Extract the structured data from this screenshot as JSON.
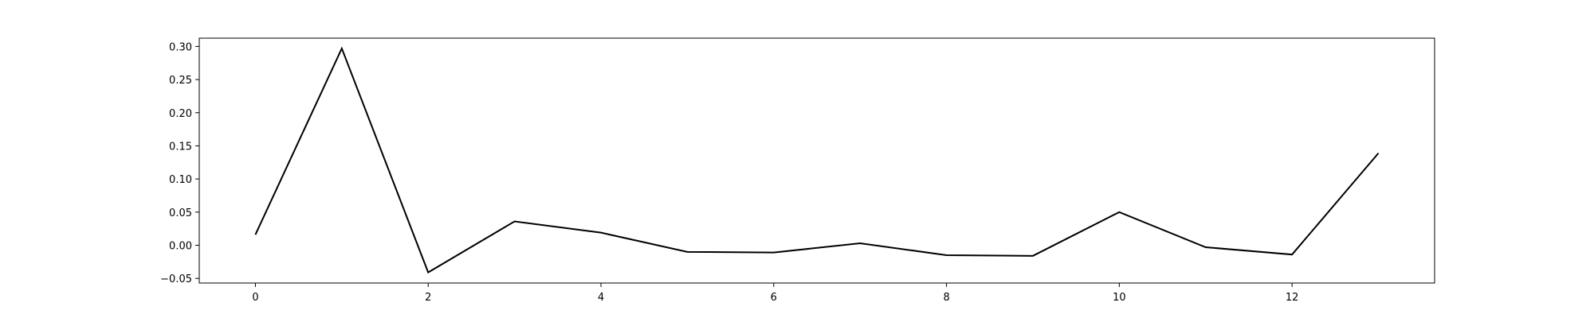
{
  "chart_data": {
    "type": "line",
    "title": "",
    "xlabel": "",
    "ylabel": "",
    "x": [
      0,
      1,
      2,
      3,
      4,
      5,
      6,
      7,
      8,
      9,
      10,
      11,
      12,
      13
    ],
    "series": [
      {
        "values": [
          0.016,
          0.297,
          -0.041,
          0.036,
          0.019,
          -0.01,
          -0.011,
          0.003,
          -0.015,
          -0.016,
          0.05,
          -0.003,
          -0.014,
          0.139
        ],
        "color": "#000000"
      }
    ],
    "xlim": [
      -0.65,
      13.65
    ],
    "ylim": [
      -0.057,
      0.3125
    ],
    "xticks": [
      0,
      2,
      4,
      6,
      8,
      10,
      12
    ],
    "xtick_labels": [
      "0",
      "2",
      "4",
      "6",
      "8",
      "10",
      "12"
    ],
    "yticks": [
      -0.05,
      0.0,
      0.05,
      0.1,
      0.15,
      0.2,
      0.25,
      0.3
    ],
    "ytick_labels": [
      "−0.05",
      "0.00",
      "0.05",
      "0.10",
      "0.15",
      "0.20",
      "0.25",
      "0.30"
    ],
    "grid": false,
    "legend": false
  }
}
